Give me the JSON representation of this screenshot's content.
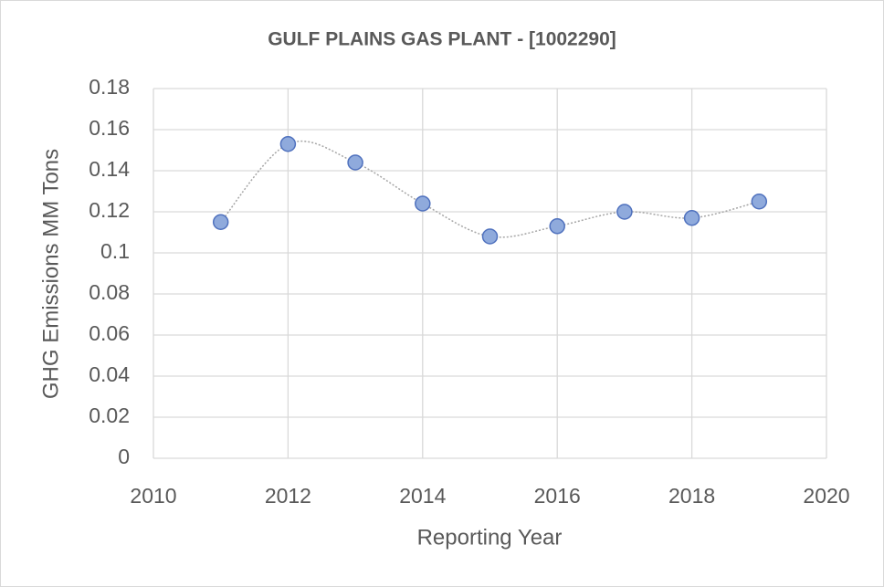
{
  "chart_data": {
    "type": "scatter",
    "title": "GULF PLAINS GAS PLANT - [1002290]",
    "x_label": "Reporting Year",
    "y_label": "GHG Emissions MM Tons",
    "x": [
      2011,
      2012,
      2013,
      2014,
      2015,
      2016,
      2017,
      2018,
      2019
    ],
    "series": [
      {
        "name": "GHG Emissions",
        "color": "#8faadc",
        "edge_color": "#4f71be",
        "line_color": "#a6a6a6",
        "values": [
          0.115,
          0.153,
          0.144,
          0.124,
          0.108,
          0.113,
          0.12,
          0.117,
          0.125
        ]
      }
    ],
    "xlim": [
      2010,
      2020
    ],
    "xticks": [
      2010,
      2012,
      2014,
      2016,
      2018,
      2020
    ],
    "ylim": [
      0,
      0.18
    ],
    "yticks": [
      0,
      0.02,
      0.04,
      0.06,
      0.08,
      0.1,
      0.12,
      0.14,
      0.16,
      0.18
    ],
    "grid": true,
    "smooth": true
  }
}
